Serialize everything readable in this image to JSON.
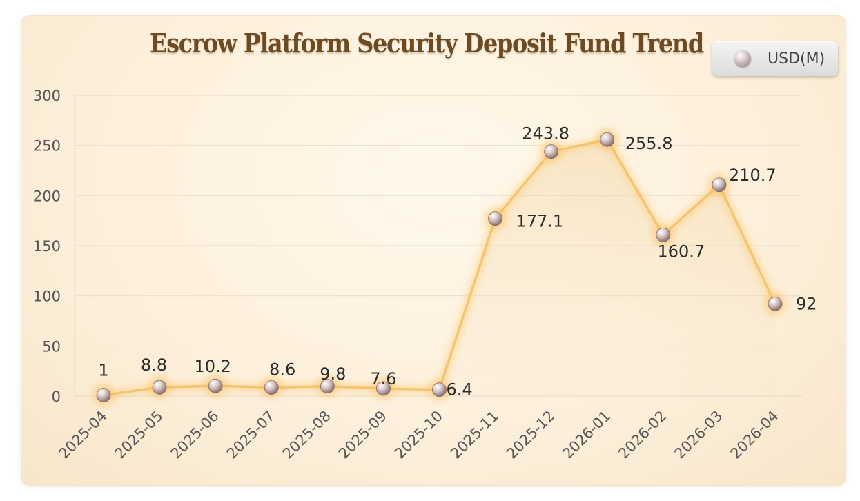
{
  "chart_data": {
    "type": "line",
    "title": "Escrow Platform Security Deposit Fund Trend",
    "xlabel": "",
    "ylabel": "",
    "categories": [
      "2025-04",
      "2025-05",
      "2025-06",
      "2025-07",
      "2025-08",
      "2025-09",
      "2025-10",
      "2025-11",
      "2025-12",
      "2026-01",
      "2026-02",
      "2026-03",
      "2026-04"
    ],
    "series": [
      {
        "name": "USD(M)",
        "values": [
          1,
          8.8,
          10.2,
          8.6,
          9.8,
          7.6,
          6.4,
          177.1,
          243.8,
          255.8,
          160.7,
          210.7,
          92
        ],
        "data_labels": [
          "1",
          "8.8",
          "10.2",
          "8.6",
          "9.8",
          "7.6",
          "6.4",
          "177.1",
          "243.8",
          "255.8",
          "160.7",
          "210.7",
          "92"
        ]
      }
    ],
    "ylim": [
      0,
      300
    ],
    "yticks": [
      "0",
      "50",
      "100",
      "150",
      "200",
      "250",
      "300"
    ],
    "grid": true,
    "legend_position": "top-right",
    "colors": {
      "line": "#f2c574",
      "glow": "#ffc96b",
      "area": "#f3dcb2",
      "title": "#6e4a22"
    }
  }
}
